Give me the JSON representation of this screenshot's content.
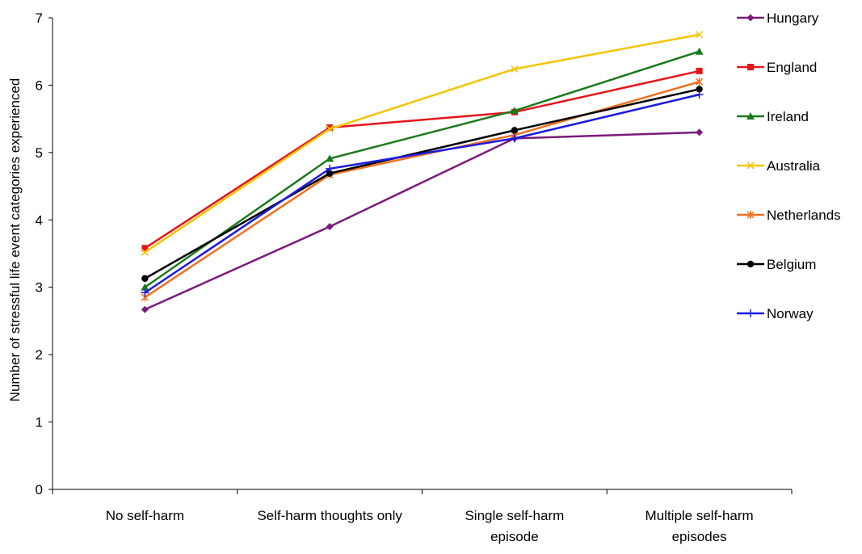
{
  "chart_data": {
    "type": "line",
    "title": "",
    "xlabel": "",
    "ylabel": "Number of stressful life event categories experienced",
    "ylim": [
      0,
      7
    ],
    "yticks": [
      0,
      1,
      2,
      3,
      4,
      5,
      6,
      7
    ],
    "grid": false,
    "legend_position": "right",
    "categories": [
      [
        "No self-harm"
      ],
      [
        "Self-harm thoughts only"
      ],
      [
        "Single self-harm",
        "episode"
      ],
      [
        "Multiple self-harm",
        "episodes"
      ]
    ],
    "series": [
      {
        "name": "Hungary",
        "color": "#7B1A7B",
        "marker": "diamond",
        "values": [
          2.67,
          3.9,
          5.21,
          5.3
        ]
      },
      {
        "name": "England",
        "color": "#E8141A",
        "marker": "square",
        "values": [
          3.58,
          5.37,
          5.6,
          6.21
        ]
      },
      {
        "name": "Ireland",
        "color": "#1A7A1A",
        "marker": "triangle",
        "values": [
          3.0,
          4.91,
          5.62,
          6.5
        ]
      },
      {
        "name": "Australia",
        "color": "#F5C400",
        "marker": "x",
        "values": [
          3.52,
          5.35,
          6.24,
          6.75
        ]
      },
      {
        "name": "Netherlands",
        "color": "#F07020",
        "marker": "star",
        "values": [
          2.85,
          4.67,
          5.26,
          6.05
        ]
      },
      {
        "name": "Belgium",
        "color": "#000000",
        "marker": "circle",
        "values": [
          3.13,
          4.69,
          5.33,
          5.94
        ]
      },
      {
        "name": "Norway",
        "color": "#1A1AE0",
        "marker": "plus",
        "values": [
          2.92,
          4.76,
          5.21,
          5.86
        ]
      }
    ]
  }
}
